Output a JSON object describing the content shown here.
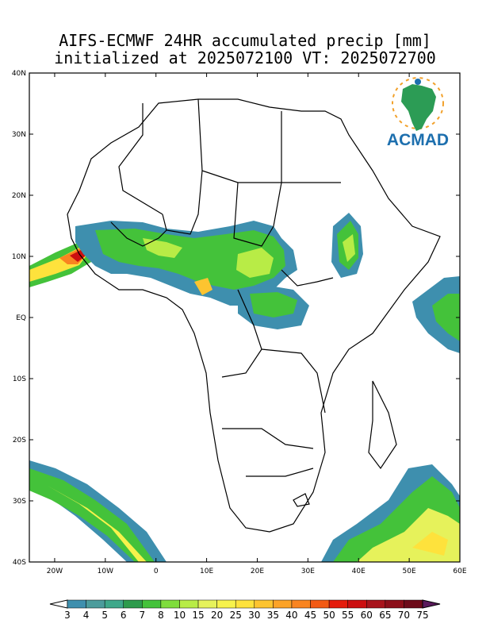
{
  "title": {
    "line1": "AIFS-ECMWF 24HR accumulated precip [mm]",
    "line2": "initialized at 2025072100 VT: 2025072700"
  },
  "logo": {
    "text": "ACMAD"
  },
  "axes": {
    "lat_labels": [
      "40N",
      "30N",
      "20N",
      "10N",
      "EQ",
      "10S",
      "20S",
      "30S",
      "40S"
    ],
    "lon_labels": [
      "20W",
      "10W",
      "0",
      "10E",
      "20E",
      "30E",
      "40E",
      "50E",
      "60E"
    ],
    "lon_range": [
      -25,
      60
    ],
    "lat_range": [
      -40,
      40
    ]
  },
  "colorbar": {
    "labels": [
      "3",
      "4",
      "5",
      "6",
      "7",
      "8",
      "10",
      "15",
      "20",
      "25",
      "30",
      "35",
      "40",
      "45",
      "50",
      "55",
      "60",
      "65",
      "70",
      "75"
    ],
    "colors": [
      "#ffffff",
      "#3e8fae",
      "#4c9c9c",
      "#3fa88a",
      "#2d9b4c",
      "#44c23a",
      "#7fdd3c",
      "#b8ec46",
      "#e6f25b",
      "#f7f24c",
      "#fee23c",
      "#fdc430",
      "#fca328",
      "#f98420",
      "#f25a14",
      "#e51c0c",
      "#cc0f10",
      "#a8141c",
      "#8c0f1a",
      "#6d0b1a",
      "#5a1a5c"
    ]
  },
  "colors": {
    "low": "#3e8fae",
    "mid": "#44c23a",
    "high": "#fee23c",
    "extreme": "#cc0f10"
  }
}
